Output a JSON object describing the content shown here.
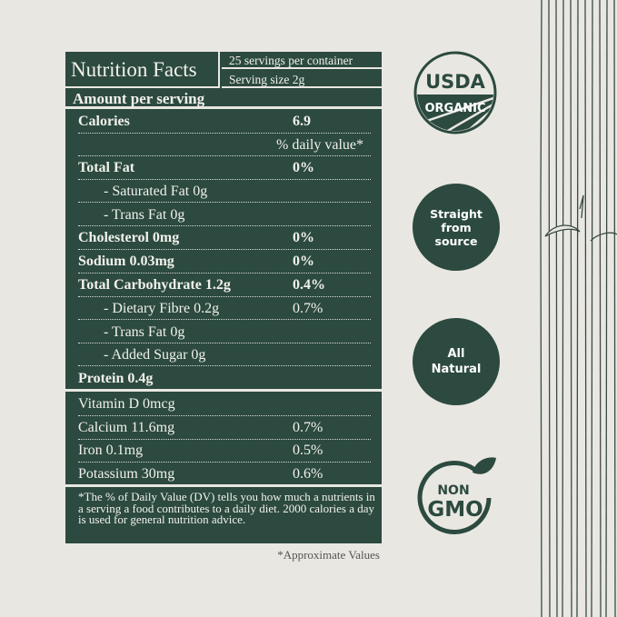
{
  "label": {
    "title": "Nutrition Facts",
    "servings_per_container": "25 servings per container",
    "serving_size": "Serving size 2g",
    "amount_per_serving": "Amount per serving",
    "calories_label": "Calories",
    "calories_value": "6.9",
    "daily_value_header": "% daily value*",
    "rows": [
      {
        "label": "Total Fat",
        "value": "0%"
      },
      {
        "label": "- Saturated Fat 0g",
        "value": ""
      },
      {
        "label": "- Trans Fat 0g",
        "value": ""
      },
      {
        "label": "Cholesterol 0mg",
        "value": "0%"
      },
      {
        "label": "Sodium 0.03mg",
        "value": "0%"
      },
      {
        "label": "Total Carbohydrate 1.2g",
        "value": "0.4%"
      },
      {
        "label": "- Dietary Fibre 0.2g",
        "value": "0.7%"
      },
      {
        "label": "- Trans Fat 0g",
        "value": ""
      },
      {
        "label": "- Added Sugar 0g",
        "value": ""
      },
      {
        "label": "Protein 0.4g",
        "value": ""
      }
    ],
    "minerals": [
      {
        "label": "Vitamin D 0mcg",
        "value": ""
      },
      {
        "label": "Calcium 11.6mg",
        "value": "0.7%"
      },
      {
        "label": "Iron 0.1mg",
        "value": "0.5%"
      },
      {
        "label": "Potassium 30mg",
        "value": "0.6%"
      }
    ],
    "footnote": "*The % of Daily Value (DV) tells you how much a nutrients in a serving a food contributes to a daily diet. 2000 calories a day is used for general nutrition advice."
  },
  "approximate_note": "*Approximate Values",
  "badges": {
    "usda_top": "USDA",
    "usda_bottom": "ORGANIC",
    "source": "Straight from source",
    "natural": "All Natural",
    "gmo_top": "NON",
    "gmo_bottom": "GMO"
  },
  "colors": {
    "brand_green": "#2c4a3f",
    "background": "#e9e7e2"
  }
}
